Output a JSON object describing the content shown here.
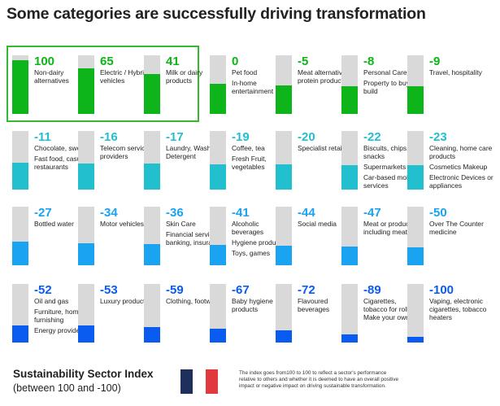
{
  "title": "Some categories are successfully driving transformation",
  "footer": {
    "title": "Sustainability Sector Index",
    "subtitle": "(between 100 and  -100)",
    "footnote": "The index goes from100 to 100 to reflect a sector's performance relative to others and whether it is deemed to have an overall positive impact or negative impact on driving sustainable transformation."
  },
  "colors": {
    "green": "#0db41a",
    "teal": "#22bfcf",
    "blue": "#1aa3f0",
    "dark_blue": "#0a5cf0",
    "track": "#d9d9d9",
    "highlight": "#34b82f"
  },
  "chart_data": {
    "type": "bar",
    "title": "Some categories are successfully driving transformation",
    "ylim": [
      -100,
      100
    ],
    "categories": [
      {
        "value": "100",
        "labels": [
          "Non-dairy alternatives"
        ],
        "group": "green",
        "highlighted": true
      },
      {
        "value": "65",
        "labels": [
          "Electric / Hybrid vehicles"
        ],
        "group": "green",
        "highlighted": true
      },
      {
        "value": "41",
        "labels": [
          "Milk or dairy products"
        ],
        "group": "green",
        "highlighted": true
      },
      {
        "value": "0",
        "labels": [
          "Pet food",
          "In-home entertainment"
        ],
        "group": "green"
      },
      {
        "value": "-5",
        "labels": [
          "Meat alternative protein products"
        ],
        "group": "green"
      },
      {
        "value": "-8",
        "labels": [
          "Personal Care",
          "Property to buy or build"
        ],
        "group": "green"
      },
      {
        "value": "-9",
        "labels": [
          "Travel, hospitality"
        ],
        "group": "green"
      },
      {
        "value": "-11",
        "labels": [
          "Chocolate, sweets",
          "Fast food, casual restaurants"
        ],
        "group": "teal"
      },
      {
        "value": "-16",
        "labels": [
          "Telecom service providers"
        ],
        "group": "teal"
      },
      {
        "value": "-17",
        "labels": [
          "Laundry, Washing Detergent"
        ],
        "group": "teal"
      },
      {
        "value": "-19",
        "labels": [
          "Coffee, tea",
          "Fresh Fruit, vegetables"
        ],
        "group": "teal"
      },
      {
        "value": "-20",
        "labels": [
          "Specialist retailers"
        ],
        "group": "teal"
      },
      {
        "value": "-22",
        "labels": [
          "Biscuits, chips, snacks",
          "Supermarkets",
          "Car-based mobility services"
        ],
        "group": "teal"
      },
      {
        "value": "-23",
        "labels": [
          "Cleaning, home care products",
          "Cosmetics Makeup",
          "Electronic Devices or appliances"
        ],
        "group": "teal"
      },
      {
        "value": "-27",
        "labels": [
          "Bottled water"
        ],
        "group": "blue"
      },
      {
        "value": "-34",
        "labels": [
          "Motor vehicles"
        ],
        "group": "blue"
      },
      {
        "value": "-36",
        "labels": [
          "Skin Care",
          "Financial services, banking, insurance"
        ],
        "group": "blue"
      },
      {
        "value": "-41",
        "labels": [
          "Alcoholic beverages",
          "Hygiene products",
          "Toys, games"
        ],
        "group": "blue"
      },
      {
        "value": "-44",
        "labels": [
          "Social media"
        ],
        "group": "blue"
      },
      {
        "value": "-47",
        "labels": [
          "Meat or products including meat"
        ],
        "group": "blue"
      },
      {
        "value": "-50",
        "labels": [
          "Over The Counter medicine"
        ],
        "group": "blue"
      },
      {
        "value": "-52",
        "labels": [
          "Oil and gas",
          "Furniture, home furnishing",
          "Energy providers"
        ],
        "group": "dark_blue"
      },
      {
        "value": "-53",
        "labels": [
          "Luxury products"
        ],
        "group": "dark_blue"
      },
      {
        "value": "-59",
        "labels": [
          "Clothing, footwear"
        ],
        "group": "dark_blue"
      },
      {
        "value": "-67",
        "labels": [
          "Baby hygiene products"
        ],
        "group": "dark_blue"
      },
      {
        "value": "-72",
        "labels": [
          "Flavoured beverages"
        ],
        "group": "dark_blue"
      },
      {
        "value": "-89",
        "labels": [
          "Cigarettes, tobacco for roll, Make your own"
        ],
        "group": "dark_blue"
      },
      {
        "value": "-100",
        "labels": [
          "Vaping, electronic cigarettes, tobacco heaters"
        ],
        "group": "dark_blue"
      }
    ]
  }
}
